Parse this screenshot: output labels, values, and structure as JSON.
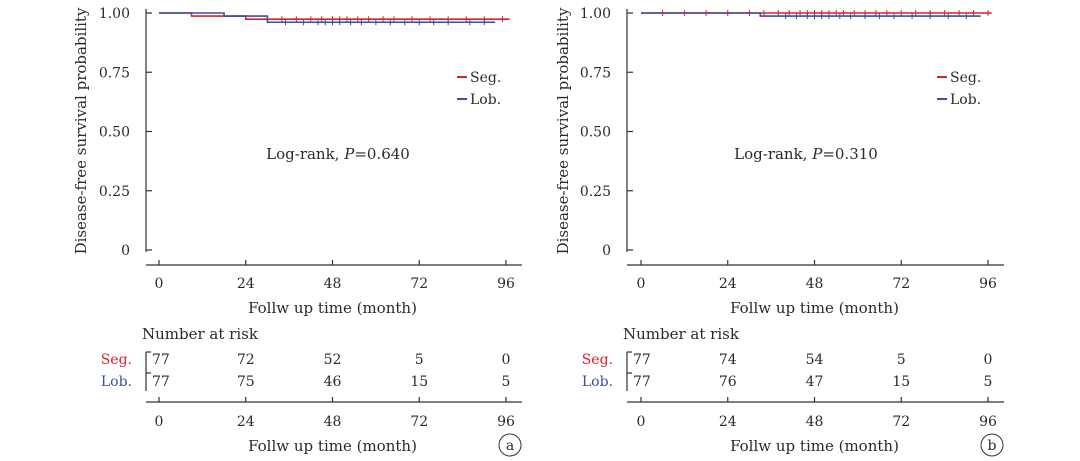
{
  "chart_data": [
    {
      "type": "line",
      "subtype": "kaplan-meier",
      "panel": "a",
      "ylabel": "Disease-free survival probability",
      "xlabel": "Follw up time (month)",
      "xticks": [
        0,
        24,
        48,
        72,
        96
      ],
      "yticks": [
        "0",
        "0.25",
        "0.50",
        "0.75",
        "1.00"
      ],
      "xlim": [
        0,
        96
      ],
      "ylim": [
        0,
        1
      ],
      "annotation": {
        "prefix": "Log-rank, ",
        "italic": "P",
        "suffix": "=0.640"
      },
      "legend": [
        "Seg.",
        "Lob."
      ],
      "series": [
        {
          "name": "Seg.",
          "color": "#d9222a",
          "steps": [
            [
              0,
              1.0
            ],
            [
              9,
              0.987
            ],
            [
              24,
              0.974
            ],
            [
              97,
              0.974
            ]
          ],
          "censored": [
            30,
            34,
            38,
            42,
            45,
            48,
            50,
            52,
            55,
            58,
            62,
            65,
            70,
            75,
            80,
            85,
            90,
            95
          ]
        },
        {
          "name": "Lob.",
          "color": "#3a4fa0",
          "steps": [
            [
              0,
              1.0
            ],
            [
              18,
              0.987
            ],
            [
              30,
              0.961
            ],
            [
              93,
              0.961
            ]
          ],
          "censored": [
            35,
            40,
            44,
            46,
            48,
            50,
            53,
            56,
            60,
            64,
            68,
            72,
            76,
            80,
            86,
            90
          ]
        }
      ],
      "risk_table": {
        "title": "Number at risk",
        "rows": [
          {
            "label": "Seg.",
            "values": [
              "77",
              "72",
              "52",
              "5",
              "0"
            ]
          },
          {
            "label": "Lob.",
            "values": [
              "77",
              "75",
              "46",
              "15",
              "5"
            ]
          }
        ],
        "xticks": [
          0,
          24,
          48,
          72,
          96
        ],
        "xlabel": "Follw up time (month)"
      }
    },
    {
      "type": "line",
      "subtype": "kaplan-meier",
      "panel": "b",
      "ylabel": "Disease-free survival probability",
      "xlabel": "Follw up time (month)",
      "xticks": [
        0,
        24,
        48,
        72,
        96
      ],
      "yticks": [
        "0",
        "0.25",
        "0.50",
        "0.75",
        "1.00"
      ],
      "xlim": [
        0,
        96
      ],
      "ylim": [
        0,
        1
      ],
      "annotation": {
        "prefix": "Log-rank, ",
        "italic": "P",
        "suffix": "=0.310"
      },
      "legend": [
        "Seg.",
        "Lob."
      ],
      "series": [
        {
          "name": "Seg.",
          "color": "#d9222a",
          "steps": [
            [
              0,
              1.0
            ],
            [
              97,
              1.0
            ]
          ],
          "censored": [
            6,
            12,
            18,
            24,
            30,
            34,
            38,
            41,
            44,
            46,
            48,
            50,
            52,
            54,
            56,
            59,
            62,
            65,
            68,
            72,
            76,
            80,
            84,
            88,
            92,
            96
          ]
        },
        {
          "name": "Lob.",
          "color": "#3a4fa0",
          "steps": [
            [
              0,
              1.0
            ],
            [
              33,
              0.987
            ],
            [
              94,
              0.987
            ]
          ],
          "censored": [
            40,
            43,
            46,
            48,
            50,
            52,
            55,
            58,
            62,
            66,
            70,
            75,
            80,
            85,
            90
          ]
        }
      ],
      "risk_table": {
        "title": "Number at risk",
        "rows": [
          {
            "label": "Seg.",
            "values": [
              "77",
              "74",
              "54",
              "5",
              "0"
            ]
          },
          {
            "label": "Lob.",
            "values": [
              "77",
              "76",
              "47",
              "15",
              "5"
            ]
          }
        ],
        "xticks": [
          0,
          24,
          48,
          72,
          96
        ],
        "xlabel": "Follw up time (month)"
      }
    }
  ]
}
